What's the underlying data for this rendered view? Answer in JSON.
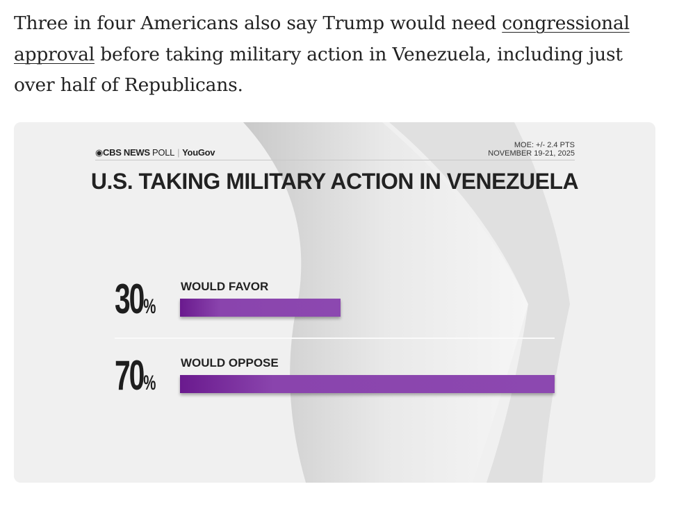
{
  "article": {
    "text_before": "Three in four Americans also say Trump would need ",
    "link_text": "congressional approval",
    "text_after": " before taking military action in Venezuela, including just over half of Republicans."
  },
  "graphic": {
    "brand_cbs": "CBS NEWS",
    "brand_poll": "POLL",
    "brand_partner": "YouGov",
    "moe": "MOE: +/- 2.4 PTS",
    "dates": "NOVEMBER 19-21, 2025",
    "colors": {
      "bar": "#8c48b0",
      "bar_dark": "#6a1a8e",
      "text": "#222222",
      "background": "#efefef"
    }
  },
  "chart_data": {
    "type": "bar",
    "orientation": "horizontal",
    "title": "U.S. TAKING MILITARY ACTION IN VENEZUELA",
    "categories": [
      "WOULD FAVOR",
      "WOULD OPPOSE"
    ],
    "values": [
      30,
      70
    ],
    "value_labels": [
      "30",
      "70"
    ],
    "unit": "%",
    "xlim": [
      0,
      70
    ],
    "grid": false
  }
}
